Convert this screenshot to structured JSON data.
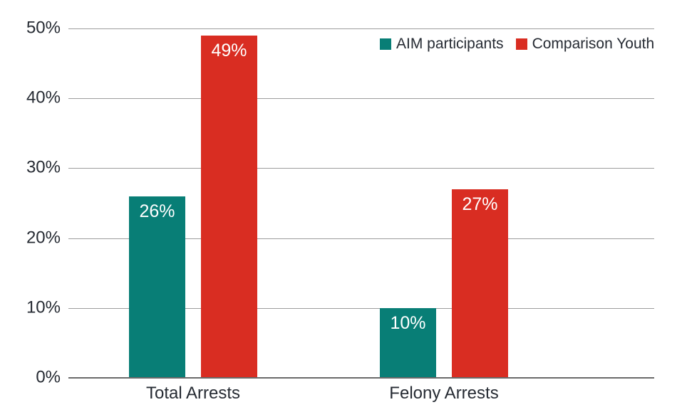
{
  "chart_data": {
    "type": "bar",
    "title": "",
    "xlabel": "",
    "ylabel": "",
    "categories": [
      "Total Arrests",
      "Felony Arrests"
    ],
    "series": [
      {
        "name": "AIM participants",
        "color": "#087E76",
        "values": [
          26,
          10
        ],
        "labels": [
          "26%",
          "10%"
        ]
      },
      {
        "name": "Comparison Youth",
        "color": "#D92D22",
        "values": [
          49,
          27
        ],
        "labels": [
          "49%",
          "27%"
        ]
      }
    ],
    "y_axis": {
      "min": 0,
      "max": 50,
      "ticks": [
        0,
        10,
        20,
        30,
        40,
        50
      ],
      "tick_labels": [
        "0%",
        "10%",
        "20%",
        "30%",
        "40%",
        "50%"
      ]
    },
    "grid": "horizontal",
    "legend_position": "top-right",
    "colors": {
      "gridline": "#9C9C9C",
      "axis_line": "#6A6A6A",
      "text": "#262B33",
      "bar_value_label": "#FFFFFF",
      "background": "#FFFFFF"
    }
  }
}
